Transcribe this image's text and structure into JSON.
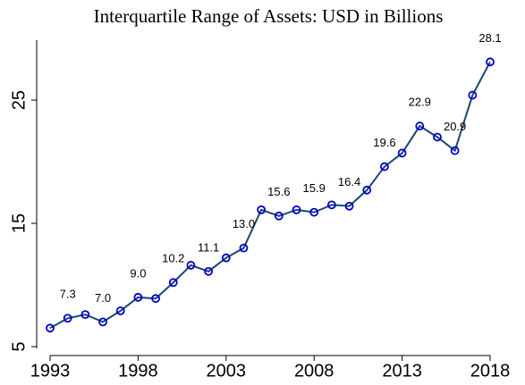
{
  "chart_data": {
    "type": "line",
    "title": "Interquartile Range of Assets: USD in Billions",
    "x": [
      1993,
      1994,
      1995,
      1996,
      1997,
      1998,
      1999,
      2000,
      2001,
      2002,
      2003,
      2004,
      2005,
      2006,
      2007,
      2008,
      2009,
      2010,
      2011,
      2012,
      2013,
      2014,
      2015,
      2016,
      2017,
      2018
    ],
    "series": [
      {
        "color": "#1a476f",
        "marker_color": "#0000cc",
        "values": [
          6.5,
          7.3,
          7.6,
          7.0,
          7.9,
          9.0,
          8.9,
          10.2,
          11.6,
          11.1,
          12.2,
          13.0,
          16.1,
          15.6,
          16.1,
          15.9,
          16.5,
          16.4,
          17.7,
          19.6,
          20.7,
          22.9,
          22.0,
          20.9,
          25.4,
          28.1
        ],
        "value_labels": [
          null,
          "7.3",
          null,
          "7.0",
          null,
          "9.0",
          null,
          "10.2",
          null,
          "11.1",
          null,
          "13.0",
          null,
          "15.6",
          null,
          "15.9",
          null,
          "16.4",
          null,
          "19.6",
          null,
          "22.9",
          null,
          "20.9",
          null,
          "28.1"
        ]
      }
    ],
    "xlim": [
      1993,
      2018
    ],
    "xticks": [
      1993,
      1998,
      2003,
      2008,
      2013,
      2018
    ],
    "ylim": [
      5,
      29.5
    ],
    "yticks": [
      5,
      15,
      25
    ]
  }
}
